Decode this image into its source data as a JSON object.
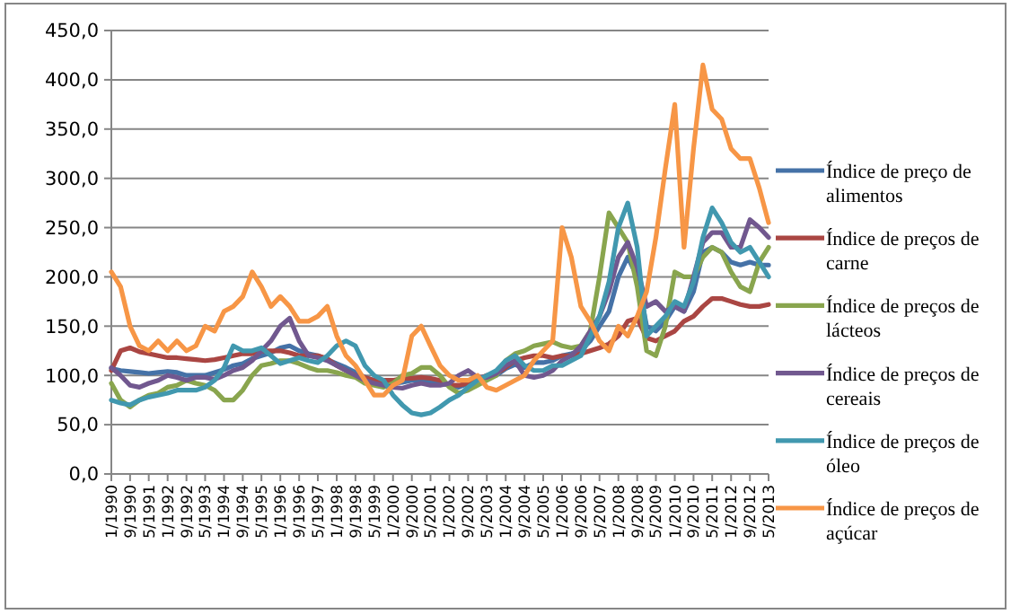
{
  "chart_data": {
    "type": "line",
    "x": [
      "1990-01",
      "1990-05",
      "1990-09",
      "1991-01",
      "1991-05",
      "1991-09",
      "1992-01",
      "1992-05",
      "1992-09",
      "1993-01",
      "1993-05",
      "1993-09",
      "1994-01",
      "1994-05",
      "1994-09",
      "1995-01",
      "1995-05",
      "1995-09",
      "1996-01",
      "1996-05",
      "1996-09",
      "1997-01",
      "1997-05",
      "1997-09",
      "1998-01",
      "1998-05",
      "1998-09",
      "1999-01",
      "1999-05",
      "1999-09",
      "2000-01",
      "2000-05",
      "2000-09",
      "2001-01",
      "2001-05",
      "2001-09",
      "2002-01",
      "2002-05",
      "2002-09",
      "2003-01",
      "2003-05",
      "2003-09",
      "2004-01",
      "2004-05",
      "2004-09",
      "2005-01",
      "2005-05",
      "2005-09",
      "2006-01",
      "2006-05",
      "2006-09",
      "2007-01",
      "2007-05",
      "2007-09",
      "2008-01",
      "2008-05",
      "2008-09",
      "2009-01",
      "2009-05",
      "2009-09",
      "2010-01",
      "2010-05",
      "2010-09",
      "2011-01",
      "2011-05",
      "2011-09",
      "2012-01",
      "2012-05",
      "2012-09",
      "2013-01",
      "2013-05"
    ],
    "series": [
      {
        "name": "Índice de preço de alimentos",
        "color": "#4572a7",
        "values": [
          107,
          105,
          104,
          103,
          102,
          103,
          104,
          103,
          100,
          100,
          100,
          103,
          106,
          110,
          112,
          117,
          120,
          123,
          128,
          130,
          125,
          122,
          120,
          116,
          112,
          108,
          103,
          98,
          95,
          93,
          92,
          93,
          95,
          95,
          93,
          92,
          90,
          88,
          92,
          96,
          98,
          100,
          107,
          111,
          108,
          113,
          113,
          115,
          120,
          122,
          125,
          135,
          150,
          165,
          200,
          220,
          200,
          150,
          145,
          155,
          170,
          165,
          185,
          225,
          230,
          225,
          215,
          212,
          215,
          212,
          212
        ]
      },
      {
        "name": "Índice de preços de carne",
        "color": "#aa4643",
        "values": [
          105,
          125,
          128,
          124,
          122,
          120,
          118,
          118,
          117,
          116,
          115,
          116,
          118,
          120,
          122,
          122,
          125,
          125,
          125,
          123,
          120,
          120,
          120,
          117,
          110,
          105,
          100,
          98,
          95,
          95,
          95,
          97,
          97,
          98,
          97,
          95,
          90,
          90,
          92,
          96,
          100,
          102,
          108,
          115,
          118,
          120,
          120,
          118,
          120,
          120,
          122,
          125,
          128,
          132,
          140,
          155,
          158,
          138,
          135,
          140,
          145,
          155,
          160,
          170,
          178,
          178,
          175,
          172,
          170,
          170,
          172
        ]
      },
      {
        "name": "Índice de preços de lácteos",
        "color": "#89a54e",
        "values": [
          92,
          75,
          68,
          75,
          80,
          82,
          88,
          90,
          95,
          92,
          90,
          85,
          75,
          75,
          85,
          100,
          110,
          112,
          115,
          115,
          112,
          108,
          105,
          105,
          103,
          100,
          98,
          92,
          90,
          88,
          92,
          100,
          102,
          108,
          108,
          100,
          88,
          82,
          85,
          90,
          95,
          100,
          115,
          122,
          125,
          130,
          132,
          134,
          130,
          128,
          130,
          145,
          200,
          265,
          250,
          235,
          190,
          125,
          120,
          150,
          205,
          200,
          200,
          220,
          230,
          225,
          205,
          190,
          185,
          215,
          230
        ]
      },
      {
        "name": "Índice de preços de cereais",
        "color": "#71588f",
        "values": [
          108,
          100,
          90,
          88,
          92,
          95,
          100,
          98,
          95,
          98,
          98,
          96,
          100,
          105,
          108,
          115,
          125,
          135,
          150,
          158,
          135,
          120,
          118,
          115,
          110,
          105,
          100,
          95,
          92,
          90,
          88,
          87,
          90,
          92,
          90,
          90,
          92,
          100,
          105,
          98,
          98,
          102,
          110,
          115,
          100,
          98,
          100,
          105,
          115,
          120,
          130,
          145,
          160,
          185,
          220,
          235,
          210,
          170,
          175,
          165,
          170,
          165,
          200,
          235,
          245,
          245,
          230,
          230,
          258,
          250,
          240
        ]
      },
      {
        "name": "Índice de preços de óleo",
        "color": "#4198af",
        "values": [
          75,
          72,
          70,
          75,
          78,
          80,
          82,
          85,
          85,
          85,
          88,
          95,
          108,
          130,
          125,
          125,
          128,
          120,
          112,
          115,
          118,
          115,
          113,
          120,
          130,
          135,
          130,
          110,
          100,
          95,
          80,
          70,
          62,
          60,
          62,
          68,
          75,
          80,
          88,
          95,
          100,
          105,
          115,
          120,
          110,
          105,
          105,
          110,
          110,
          115,
          120,
          140,
          160,
          195,
          250,
          275,
          230,
          140,
          150,
          160,
          175,
          170,
          195,
          240,
          270,
          255,
          235,
          225,
          230,
          215,
          200
        ]
      },
      {
        "name": "Índice de preços de açúcar",
        "color": "#f79646",
        "values": [
          205,
          190,
          150,
          130,
          125,
          135,
          125,
          135,
          125,
          130,
          150,
          145,
          165,
          170,
          180,
          205,
          190,
          170,
          180,
          170,
          155,
          155,
          160,
          170,
          140,
          120,
          110,
          95,
          80,
          80,
          90,
          95,
          140,
          150,
          130,
          110,
          100,
          95,
          95,
          100,
          88,
          85,
          90,
          95,
          100,
          115,
          125,
          135,
          250,
          220,
          170,
          155,
          135,
          125,
          150,
          140,
          160,
          185,
          240,
          310,
          375,
          230,
          330,
          415,
          370,
          360,
          330,
          320,
          320,
          290,
          255
        ]
      }
    ],
    "xlim": [
      "1990-01",
      "2013-05"
    ],
    "xticks": [
      {
        "value": "1990-01",
        "label": "1/1990"
      },
      {
        "value": "1990-09",
        "label": "9/1990"
      },
      {
        "value": "1991-05",
        "label": "5/1991"
      },
      {
        "value": "1992-01",
        "label": "1/1992"
      },
      {
        "value": "1992-09",
        "label": "9/1992"
      },
      {
        "value": "1993-05",
        "label": "5/1993"
      },
      {
        "value": "1994-01",
        "label": "1/1994"
      },
      {
        "value": "1994-09",
        "label": "9/1994"
      },
      {
        "value": "1995-05",
        "label": "5/1995"
      },
      {
        "value": "1996-01",
        "label": "1/1996"
      },
      {
        "value": "1996-09",
        "label": "9/1996"
      },
      {
        "value": "1997-05",
        "label": "5/1997"
      },
      {
        "value": "1998-01",
        "label": "1/1998"
      },
      {
        "value": "1998-09",
        "label": "9/1998"
      },
      {
        "value": "1999-05",
        "label": "5/1999"
      },
      {
        "value": "2000-01",
        "label": "1/2000"
      },
      {
        "value": "2000-09",
        "label": "9/2000"
      },
      {
        "value": "2001-05",
        "label": "5/2001"
      },
      {
        "value": "2002-01",
        "label": "1/2002"
      },
      {
        "value": "2002-09",
        "label": "9/2002"
      },
      {
        "value": "2003-05",
        "label": "5/2003"
      },
      {
        "value": "2004-01",
        "label": "1/2004"
      },
      {
        "value": "2004-09",
        "label": "9/2004"
      },
      {
        "value": "2005-05",
        "label": "5/2005"
      },
      {
        "value": "2006-01",
        "label": "1/2006"
      },
      {
        "value": "2006-09",
        "label": "9/2006"
      },
      {
        "value": "2007-05",
        "label": "5/2007"
      },
      {
        "value": "2008-01",
        "label": "1/2008"
      },
      {
        "value": "2008-09",
        "label": "9/2008"
      },
      {
        "value": "2009-05",
        "label": "5/2009"
      },
      {
        "value": "2010-01",
        "label": "1/2010"
      },
      {
        "value": "2010-09",
        "label": "9/2010"
      },
      {
        "value": "2011-05",
        "label": "5/2011"
      },
      {
        "value": "2012-01",
        "label": "1/2012"
      },
      {
        "value": "2012-09",
        "label": "9/2012"
      },
      {
        "value": "2013-05",
        "label": "5/2013"
      }
    ],
    "ylim": [
      0,
      450
    ],
    "yticks": [
      {
        "value": 0,
        "label": "0,0"
      },
      {
        "value": 50,
        "label": "50,0"
      },
      {
        "value": 100,
        "label": "100,0"
      },
      {
        "value": 150,
        "label": "150,0"
      },
      {
        "value": 200,
        "label": "200,0"
      },
      {
        "value": 250,
        "label": "250,0"
      },
      {
        "value": 300,
        "label": "300,0"
      },
      {
        "value": 350,
        "label": "350,0"
      },
      {
        "value": 400,
        "label": "400,0"
      },
      {
        "value": 450,
        "label": "450,0"
      }
    ],
    "grid": "y",
    "legend": "right",
    "line_style": "solid",
    "marker": "none"
  }
}
